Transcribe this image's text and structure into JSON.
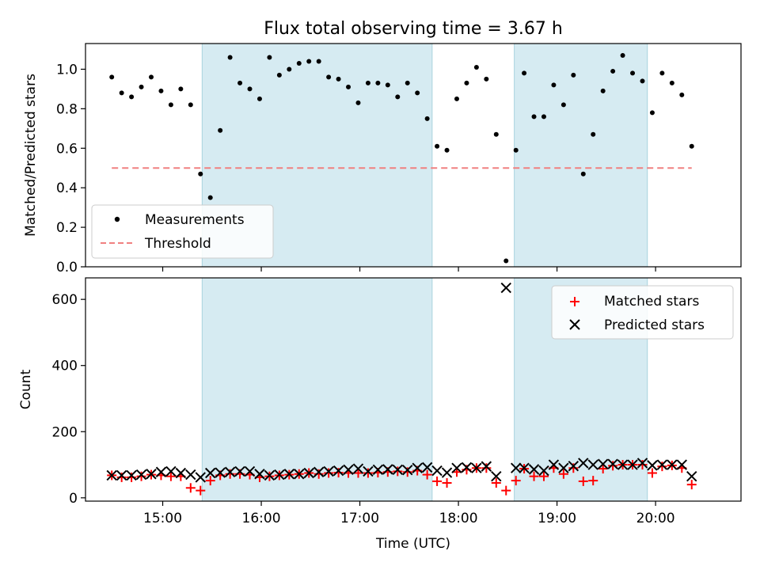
{
  "figure": {
    "title": "Flux total observing time = 3.67 h",
    "xlabel": "Time (UTC)"
  },
  "chart_data": [
    {
      "type": "scatter",
      "title": "Flux total observing time = 3.67 h",
      "ylabel": "Matched/Predicted stars",
      "xlim": [
        "14:13",
        "20:52"
      ],
      "ylim": [
        0,
        1.13
      ],
      "yticks": [
        0.0,
        0.2,
        0.4,
        0.6,
        0.8,
        1.0
      ],
      "ytick_labels": [
        "0.0",
        "0.2",
        "0.4",
        "0.6",
        "0.8",
        "1.0"
      ],
      "legend_position": "lower-left",
      "shaded_intervals": [
        [
          "15:24",
          "17:44"
        ],
        [
          "18:34",
          "19:55"
        ]
      ],
      "series": [
        {
          "name": "Measurements",
          "color": "#000000",
          "x": [
            "14:29",
            "14:35",
            "14:41",
            "14:47",
            "14:53",
            "14:59",
            "15:05",
            "15:11",
            "15:17",
            "15:23",
            "15:29",
            "15:35",
            "15:41",
            "15:47",
            "15:53",
            "15:59",
            "16:05",
            "16:11",
            "16:17",
            "16:23",
            "16:29",
            "16:35",
            "16:41",
            "16:47",
            "16:53",
            "16:59",
            "17:05",
            "17:11",
            "17:17",
            "17:23",
            "17:29",
            "17:35",
            "17:41",
            "17:47",
            "17:53",
            "17:59",
            "18:05",
            "18:11",
            "18:17",
            "18:23",
            "18:29",
            "18:35",
            "18:40",
            "18:46",
            "18:52",
            "18:58",
            "19:04",
            "19:10",
            "19:16",
            "19:22",
            "19:28",
            "19:34",
            "19:40",
            "19:46",
            "19:52",
            "19:58",
            "20:04",
            "20:10",
            "20:16",
            "20:22"
          ],
          "y": [
            0.96,
            0.88,
            0.86,
            0.91,
            0.96,
            0.89,
            0.82,
            0.9,
            0.82,
            0.47,
            0.35,
            0.69,
            1.06,
            0.93,
            0.9,
            0.85,
            1.06,
            0.97,
            1.0,
            1.03,
            1.04,
            1.04,
            0.96,
            0.95,
            0.91,
            0.83,
            0.93,
            0.93,
            0.92,
            0.86,
            0.93,
            0.88,
            0.75,
            0.61,
            0.59,
            0.85,
            0.93,
            1.01,
            0.95,
            0.67,
            0.03,
            0.59,
            0.98,
            0.76,
            0.76,
            0.92,
            0.82,
            0.97,
            0.47,
            0.67,
            0.89,
            0.99,
            1.07,
            0.98,
            0.94,
            0.78,
            0.98,
            0.93,
            0.87,
            0.61
          ]
        },
        {
          "name": "Threshold",
          "color": "#f08080",
          "style": "dashed",
          "x": [
            "14:29",
            "20:22"
          ],
          "y": [
            0.5,
            0.5
          ]
        }
      ]
    },
    {
      "type": "scatter",
      "xlabel": "Time (UTC)",
      "ylabel": "Count",
      "xlim": [
        "14:13",
        "20:52"
      ],
      "ylim": [
        -10,
        665
      ],
      "yticks": [
        0,
        200,
        400,
        600
      ],
      "ytick_labels": [
        "0",
        "200",
        "400",
        "600"
      ],
      "xticks": [
        "15:00",
        "16:00",
        "17:00",
        "18:00",
        "19:00",
        "20:00"
      ],
      "xtick_labels": [
        "15:00",
        "16:00",
        "17:00",
        "18:00",
        "19:00",
        "20:00"
      ],
      "legend_position": "top-right",
      "shaded_intervals": [
        [
          "15:24",
          "17:44"
        ],
        [
          "18:34",
          "19:55"
        ]
      ],
      "series": [
        {
          "name": "Matched stars",
          "color": "#ff0000",
          "marker": "plus",
          "x": [
            "14:29",
            "14:35",
            "14:41",
            "14:47",
            "14:53",
            "14:59",
            "15:05",
            "15:11",
            "15:17",
            "15:23",
            "15:29",
            "15:35",
            "15:41",
            "15:47",
            "15:53",
            "15:59",
            "16:05",
            "16:11",
            "16:17",
            "16:23",
            "16:29",
            "16:35",
            "16:41",
            "16:47",
            "16:53",
            "16:59",
            "17:05",
            "17:11",
            "17:17",
            "17:23",
            "17:29",
            "17:35",
            "17:41",
            "17:47",
            "17:53",
            "17:59",
            "18:05",
            "18:11",
            "18:17",
            "18:23",
            "18:29",
            "18:35",
            "18:40",
            "18:46",
            "18:52",
            "18:58",
            "19:04",
            "19:10",
            "19:16",
            "19:22",
            "19:28",
            "19:34",
            "19:40",
            "19:46",
            "19:52",
            "19:58",
            "20:04",
            "20:10",
            "20:16",
            "20:22"
          ],
          "y": [
            68,
            62,
            62,
            65,
            70,
            68,
            65,
            65,
            30,
            22,
            52,
            68,
            72,
            72,
            70,
            62,
            65,
            68,
            70,
            72,
            75,
            72,
            75,
            76,
            75,
            75,
            75,
            76,
            78,
            80,
            78,
            82,
            70,
            50,
            45,
            78,
            85,
            90,
            90,
            45,
            22,
            52,
            88,
            65,
            65,
            90,
            72,
            90,
            50,
            52,
            88,
            97,
            100,
            100,
            100,
            75,
            95,
            98,
            90,
            40
          ]
        },
        {
          "name": "Predicted stars",
          "color": "#000000",
          "marker": "x",
          "x": [
            "14:29",
            "14:35",
            "14:41",
            "14:47",
            "14:53",
            "14:59",
            "15:05",
            "15:11",
            "15:17",
            "15:23",
            "15:29",
            "15:35",
            "15:41",
            "15:47",
            "15:53",
            "15:59",
            "16:05",
            "16:11",
            "16:17",
            "16:23",
            "16:29",
            "16:35",
            "16:41",
            "16:47",
            "16:53",
            "16:59",
            "17:05",
            "17:11",
            "17:17",
            "17:23",
            "17:29",
            "17:35",
            "17:41",
            "17:47",
            "17:53",
            "17:59",
            "18:05",
            "18:11",
            "18:17",
            "18:23",
            "18:29",
            "18:35",
            "18:40",
            "18:46",
            "18:52",
            "18:58",
            "19:04",
            "19:10",
            "19:16",
            "19:22",
            "19:28",
            "19:34",
            "19:40",
            "19:46",
            "19:52",
            "19:58",
            "20:04",
            "20:10",
            "20:16",
            "20:22"
          ],
          "y": [
            68,
            68,
            68,
            70,
            72,
            78,
            80,
            75,
            70,
            62,
            75,
            76,
            78,
            80,
            80,
            72,
            68,
            70,
            72,
            72,
            75,
            78,
            80,
            82,
            85,
            88,
            80,
            85,
            86,
            85,
            84,
            90,
            92,
            82,
            76,
            90,
            92,
            90,
            95,
            65,
            635,
            90,
            90,
            86,
            82,
            100,
            90,
            96,
            105,
            100,
            102,
            102,
            100,
            100,
            105,
            98,
            100,
            100,
            100,
            65
          ]
        }
      ]
    }
  ]
}
